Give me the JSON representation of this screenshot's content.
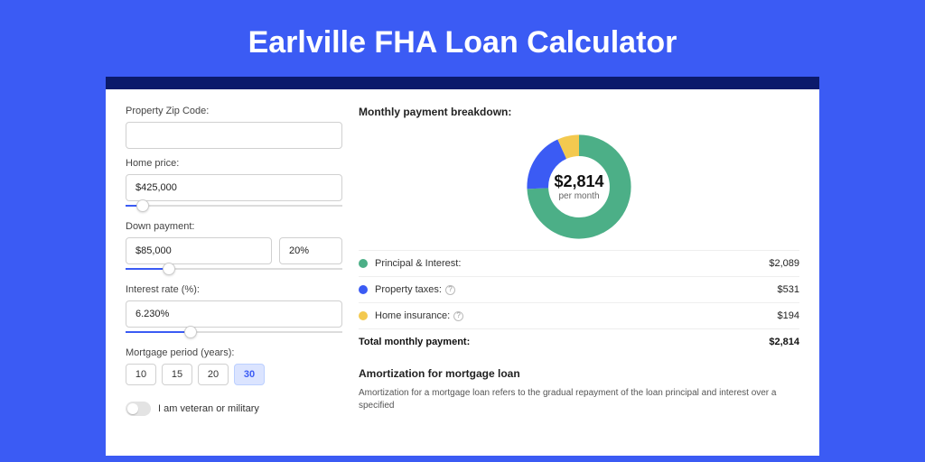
{
  "page": {
    "title": "Earlville FHA Loan Calculator",
    "background_color": "#3B5BF4",
    "card_border_top_color": "#0b1a6b"
  },
  "form": {
    "zip": {
      "label": "Property Zip Code:",
      "value": ""
    },
    "home_price": {
      "label": "Home price:",
      "value": "$425,000",
      "slider_pct": 8
    },
    "down_payment": {
      "label": "Down payment:",
      "amount": "$85,000",
      "percent": "20%",
      "slider_pct": 20
    },
    "interest_rate": {
      "label": "Interest rate (%):",
      "value": "6.230%",
      "slider_pct": 30
    },
    "mortgage_period": {
      "label": "Mortgage period (years):",
      "options": [
        "10",
        "15",
        "20",
        "30"
      ],
      "selected": "30"
    },
    "veteran": {
      "label": "I am veteran or military",
      "value": false
    }
  },
  "breakdown": {
    "title": "Monthly payment breakdown:",
    "donut": {
      "amount": "$2,814",
      "sub": "per month",
      "segments": [
        {
          "name": "principal_interest",
          "value": 2089,
          "color": "#4CAF87",
          "pct": 74.2
        },
        {
          "name": "property_taxes",
          "value": 531,
          "color": "#3B5BF4",
          "pct": 18.9
        },
        {
          "name": "home_insurance",
          "value": 194,
          "color": "#F3C94F",
          "pct": 6.9
        }
      ]
    },
    "rows": [
      {
        "label": "Principal & Interest:",
        "value": "$2,089",
        "color": "#4CAF87",
        "info": false
      },
      {
        "label": "Property taxes:",
        "value": "$531",
        "color": "#3B5BF4",
        "info": true
      },
      {
        "label": "Home insurance:",
        "value": "$194",
        "color": "#F3C94F",
        "info": true
      }
    ],
    "total": {
      "label": "Total monthly payment:",
      "value": "$2,814"
    }
  },
  "amortization": {
    "title": "Amortization for mortgage loan",
    "text": "Amortization for a mortgage loan refers to the gradual repayment of the loan principal and interest over a specified"
  }
}
